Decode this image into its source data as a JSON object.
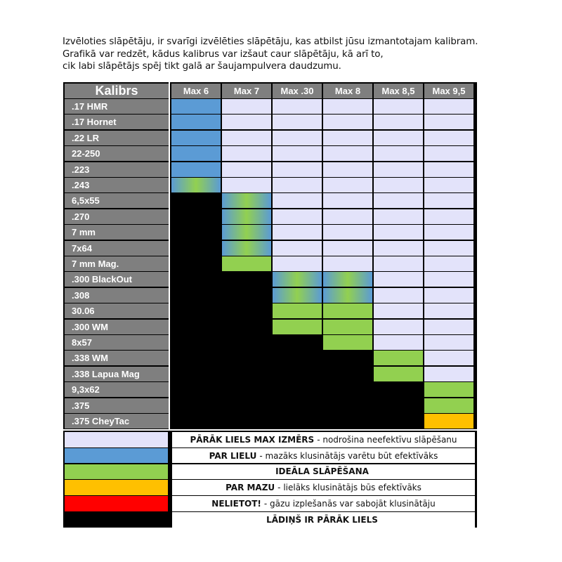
{
  "intro": [
    "Izvēloties slāpētāju, ir svarīgi izvēlēties slāpētāju, kas atbilst jūsu izmantotajam kalibram.",
    "Grafikā var redzēt, kādus kalibrus var izšaut caur slāpētāju, kā arī to,",
    "cik labi slāpētājs spēj tikt galā ar šaujampulvera daudzumu."
  ],
  "colors": {
    "L": "#e3e3fa",
    "B": "#5b9bd5",
    "G": "#92d050",
    "O": "#ffc000",
    "R": "#ff0000",
    "K": "#000000",
    "header": "#7f7f7f"
  },
  "table": {
    "corner": "Kalibrs",
    "columns": [
      "Max 6",
      "Max 7",
      "Max .30",
      "Max 8",
      "Max 8,5",
      "Max 9,5"
    ],
    "rows": [
      {
        "label": ".17 HMR",
        "cells": [
          "B",
          "L",
          "L",
          "L",
          "L",
          "L"
        ]
      },
      {
        "label": ".17 Hornet",
        "cells": [
          "B",
          "L",
          "L",
          "L",
          "L",
          "L"
        ]
      },
      {
        "label": ".22 LR",
        "cells": [
          "B",
          "L",
          "L",
          "L",
          "L",
          "L"
        ]
      },
      {
        "label": "22-250",
        "cells": [
          "B",
          "L",
          "L",
          "L",
          "L",
          "L"
        ]
      },
      {
        "label": ".223",
        "cells": [
          "B",
          "L",
          "L",
          "L",
          "L",
          "L"
        ]
      },
      {
        "label": ".243",
        "cells": [
          "BG",
          "L",
          "L",
          "L",
          "L",
          "L"
        ]
      },
      {
        "label": "6,5x55",
        "cells": [
          "K",
          "BG",
          "L",
          "L",
          "L",
          "L"
        ]
      },
      {
        "label": ".270",
        "cells": [
          "K",
          "BG",
          "L",
          "L",
          "L",
          "L"
        ]
      },
      {
        "label": "7 mm",
        "cells": [
          "K",
          "BG",
          "L",
          "L",
          "L",
          "L"
        ]
      },
      {
        "label": "7x64",
        "cells": [
          "K",
          "BG",
          "L",
          "L",
          "L",
          "L"
        ]
      },
      {
        "label": "7 mm Mag.",
        "cells": [
          "K",
          "G",
          "L",
          "L",
          "L",
          "L"
        ]
      },
      {
        "label": ".300 BlackOut",
        "cells": [
          "K",
          "K",
          "BG",
          "BG",
          "L",
          "L"
        ]
      },
      {
        "label": ".308",
        "cells": [
          "K",
          "K",
          "BG",
          "BG",
          "L",
          "L"
        ]
      },
      {
        "label": "30.06",
        "cells": [
          "K",
          "K",
          "G",
          "G",
          "L",
          "L"
        ]
      },
      {
        "label": ".300 WM",
        "cells": [
          "K",
          "K",
          "G",
          "G",
          "L",
          "L"
        ]
      },
      {
        "label": "8x57",
        "cells": [
          "K",
          "K",
          "K",
          "G",
          "L",
          "L"
        ]
      },
      {
        "label": ".338 WM",
        "cells": [
          "K",
          "K",
          "K",
          "K",
          "G",
          "L"
        ]
      },
      {
        "label": ".338 Lapua Mag",
        "cells": [
          "K",
          "K",
          "K",
          "K",
          "G",
          "L"
        ]
      },
      {
        "label": "9,3x62",
        "cells": [
          "K",
          "K",
          "K",
          "K",
          "K",
          "G"
        ]
      },
      {
        "label": ".375",
        "cells": [
          "K",
          "K",
          "K",
          "K",
          "K",
          "G"
        ]
      },
      {
        "label": ".375 CheyTac",
        "cells": [
          "K",
          "K",
          "K",
          "K",
          "K",
          "O"
        ]
      }
    ]
  },
  "legend": [
    {
      "color": "L",
      "bold": "PĀRĀK LIELS MAX IZMĒRS",
      "text": "- nodrošina neefektīvu slāpēšanu"
    },
    {
      "color": "B",
      "bold": "PAR LIELU",
      "text": "- mazāks klusinātājs varētu būt efektīvāks"
    },
    {
      "color": "G",
      "bold": "IDEĀLA SLĀPĒŠANA",
      "text": ""
    },
    {
      "color": "O",
      "bold": "PAR MAZU",
      "text": "- lielāks klusinātājs būs efektīvāks"
    },
    {
      "color": "R",
      "bold": "NELIETOT!",
      "text": "- gāzu izplešanās var sabojāt klusinātāju"
    },
    {
      "color": "K",
      "bold": "LĀDIŅŠ IR PĀRĀK LIELS",
      "text": ""
    }
  ]
}
